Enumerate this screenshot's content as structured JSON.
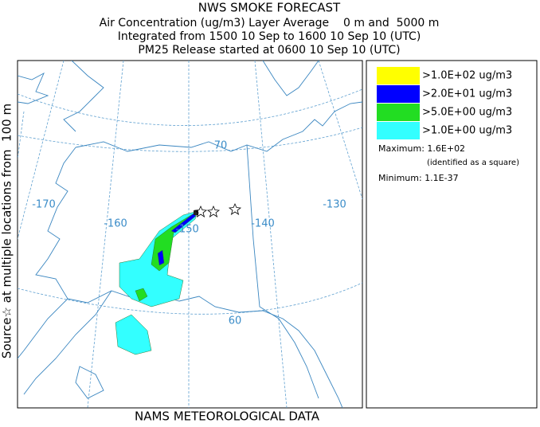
{
  "header": {
    "title": "NWS SMOKE FORECAST",
    "lines": [
      "Air Concentration (ug/m3) Layer Average    0 m and  5000 m",
      "Integrated from 1500 10 Sep to 1600 10 Sep 10 (UTC)",
      "PM25 Release started at 0600 10 Sep 10 (UTC)"
    ]
  },
  "side_label": "Source☆ at multiple locations from  100 m",
  "map": {
    "graticule_labels": [
      "-170",
      "-160",
      "-150",
      "-140",
      "-130",
      "70",
      "60"
    ]
  },
  "legend": {
    "entries": [
      {
        "label": ">1.0E+02 ug/m3",
        "color": "#ffff00"
      },
      {
        "label": ">2.0E+01 ug/m3",
        "color": "#0000ff"
      },
      {
        "label": ">5.0E+00 ug/m3",
        "color": "#22dd22"
      },
      {
        "label": ">1.0E+00 ug/m3",
        "color": "#33ffff"
      }
    ],
    "maximum": "Maximum: 1.6E+02",
    "maximum_note": "(identified as a square)",
    "minimum": "Minimum: 1.1E-37"
  },
  "footer": "NAMS METEOROLOGICAL DATA"
}
